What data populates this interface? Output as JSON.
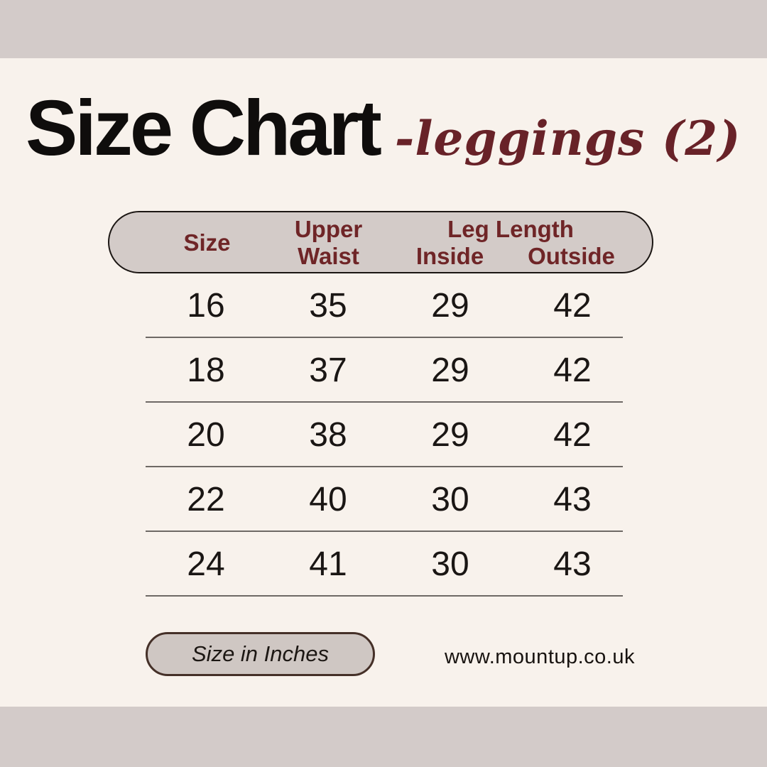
{
  "colors": {
    "background": "#f8f2ec",
    "band": "#d3cbc9",
    "maroon": "#6f2527",
    "accent_script": "#682228",
    "pill_bg": "#d3cbc8",
    "pill_border": "#1b1613",
    "footer_pill_bg": "#cfc7c3",
    "footer_pill_border": "#453028",
    "divider": "#6e6965",
    "text": "#181513"
  },
  "title": {
    "main": "Size Chart",
    "accent": "-leggings (2)"
  },
  "table_header": {
    "size": "Size",
    "upper_line1": "Upper",
    "upper_line2": "Waist",
    "leg_length": "Leg Length",
    "inside": "Inside",
    "outside": "Outside"
  },
  "footer": {
    "unit_label": "Size in Inches",
    "website": "www.mountup.co.uk"
  },
  "chart_data": {
    "type": "table",
    "title": "Size Chart - leggings (2)",
    "units": "inches",
    "columns": [
      "Size",
      "Upper Waist",
      "Leg Length Inside",
      "Leg Length Outside"
    ],
    "rows": [
      [
        "16",
        "35",
        "29",
        "42"
      ],
      [
        "18",
        "37",
        "29",
        "42"
      ],
      [
        "20",
        "38",
        "29",
        "42"
      ],
      [
        "22",
        "40",
        "30",
        "43"
      ],
      [
        "24",
        "41",
        "30",
        "43"
      ]
    ]
  }
}
